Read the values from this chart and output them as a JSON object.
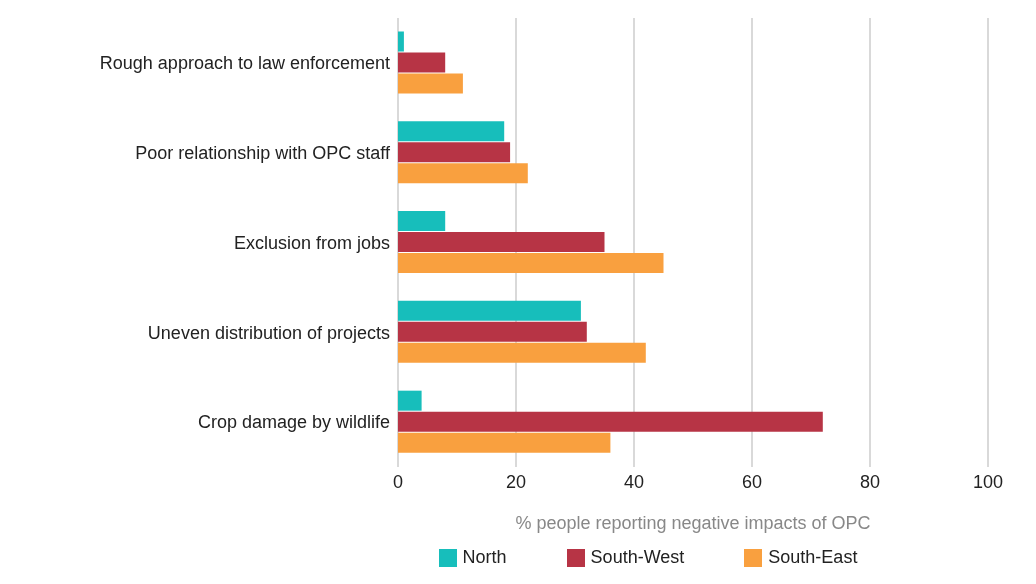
{
  "chart_data": {
    "type": "bar",
    "orientation": "horizontal",
    "categories": [
      "Rough approach to law enforcement",
      "Poor relationship with OPC staff",
      "Exclusion from jobs",
      "Uneven distribution of projects",
      "Crop damage by wildlife"
    ],
    "series": [
      {
        "name": "North",
        "color": "#17bebb",
        "values": [
          1,
          18,
          8,
          31,
          4
        ]
      },
      {
        "name": "South-West",
        "color": "#b73445",
        "values": [
          8,
          19,
          35,
          32,
          72
        ]
      },
      {
        "name": "South-East",
        "color": "#f9a03f",
        "values": [
          11,
          22,
          45,
          42,
          36
        ]
      }
    ],
    "xlabel": "% people reporting negative impacts of OPC",
    "xlim": [
      0,
      100
    ],
    "xticks": [
      0,
      20,
      40,
      60,
      80,
      100
    ],
    "grid": "x",
    "legend": "bottom"
  }
}
